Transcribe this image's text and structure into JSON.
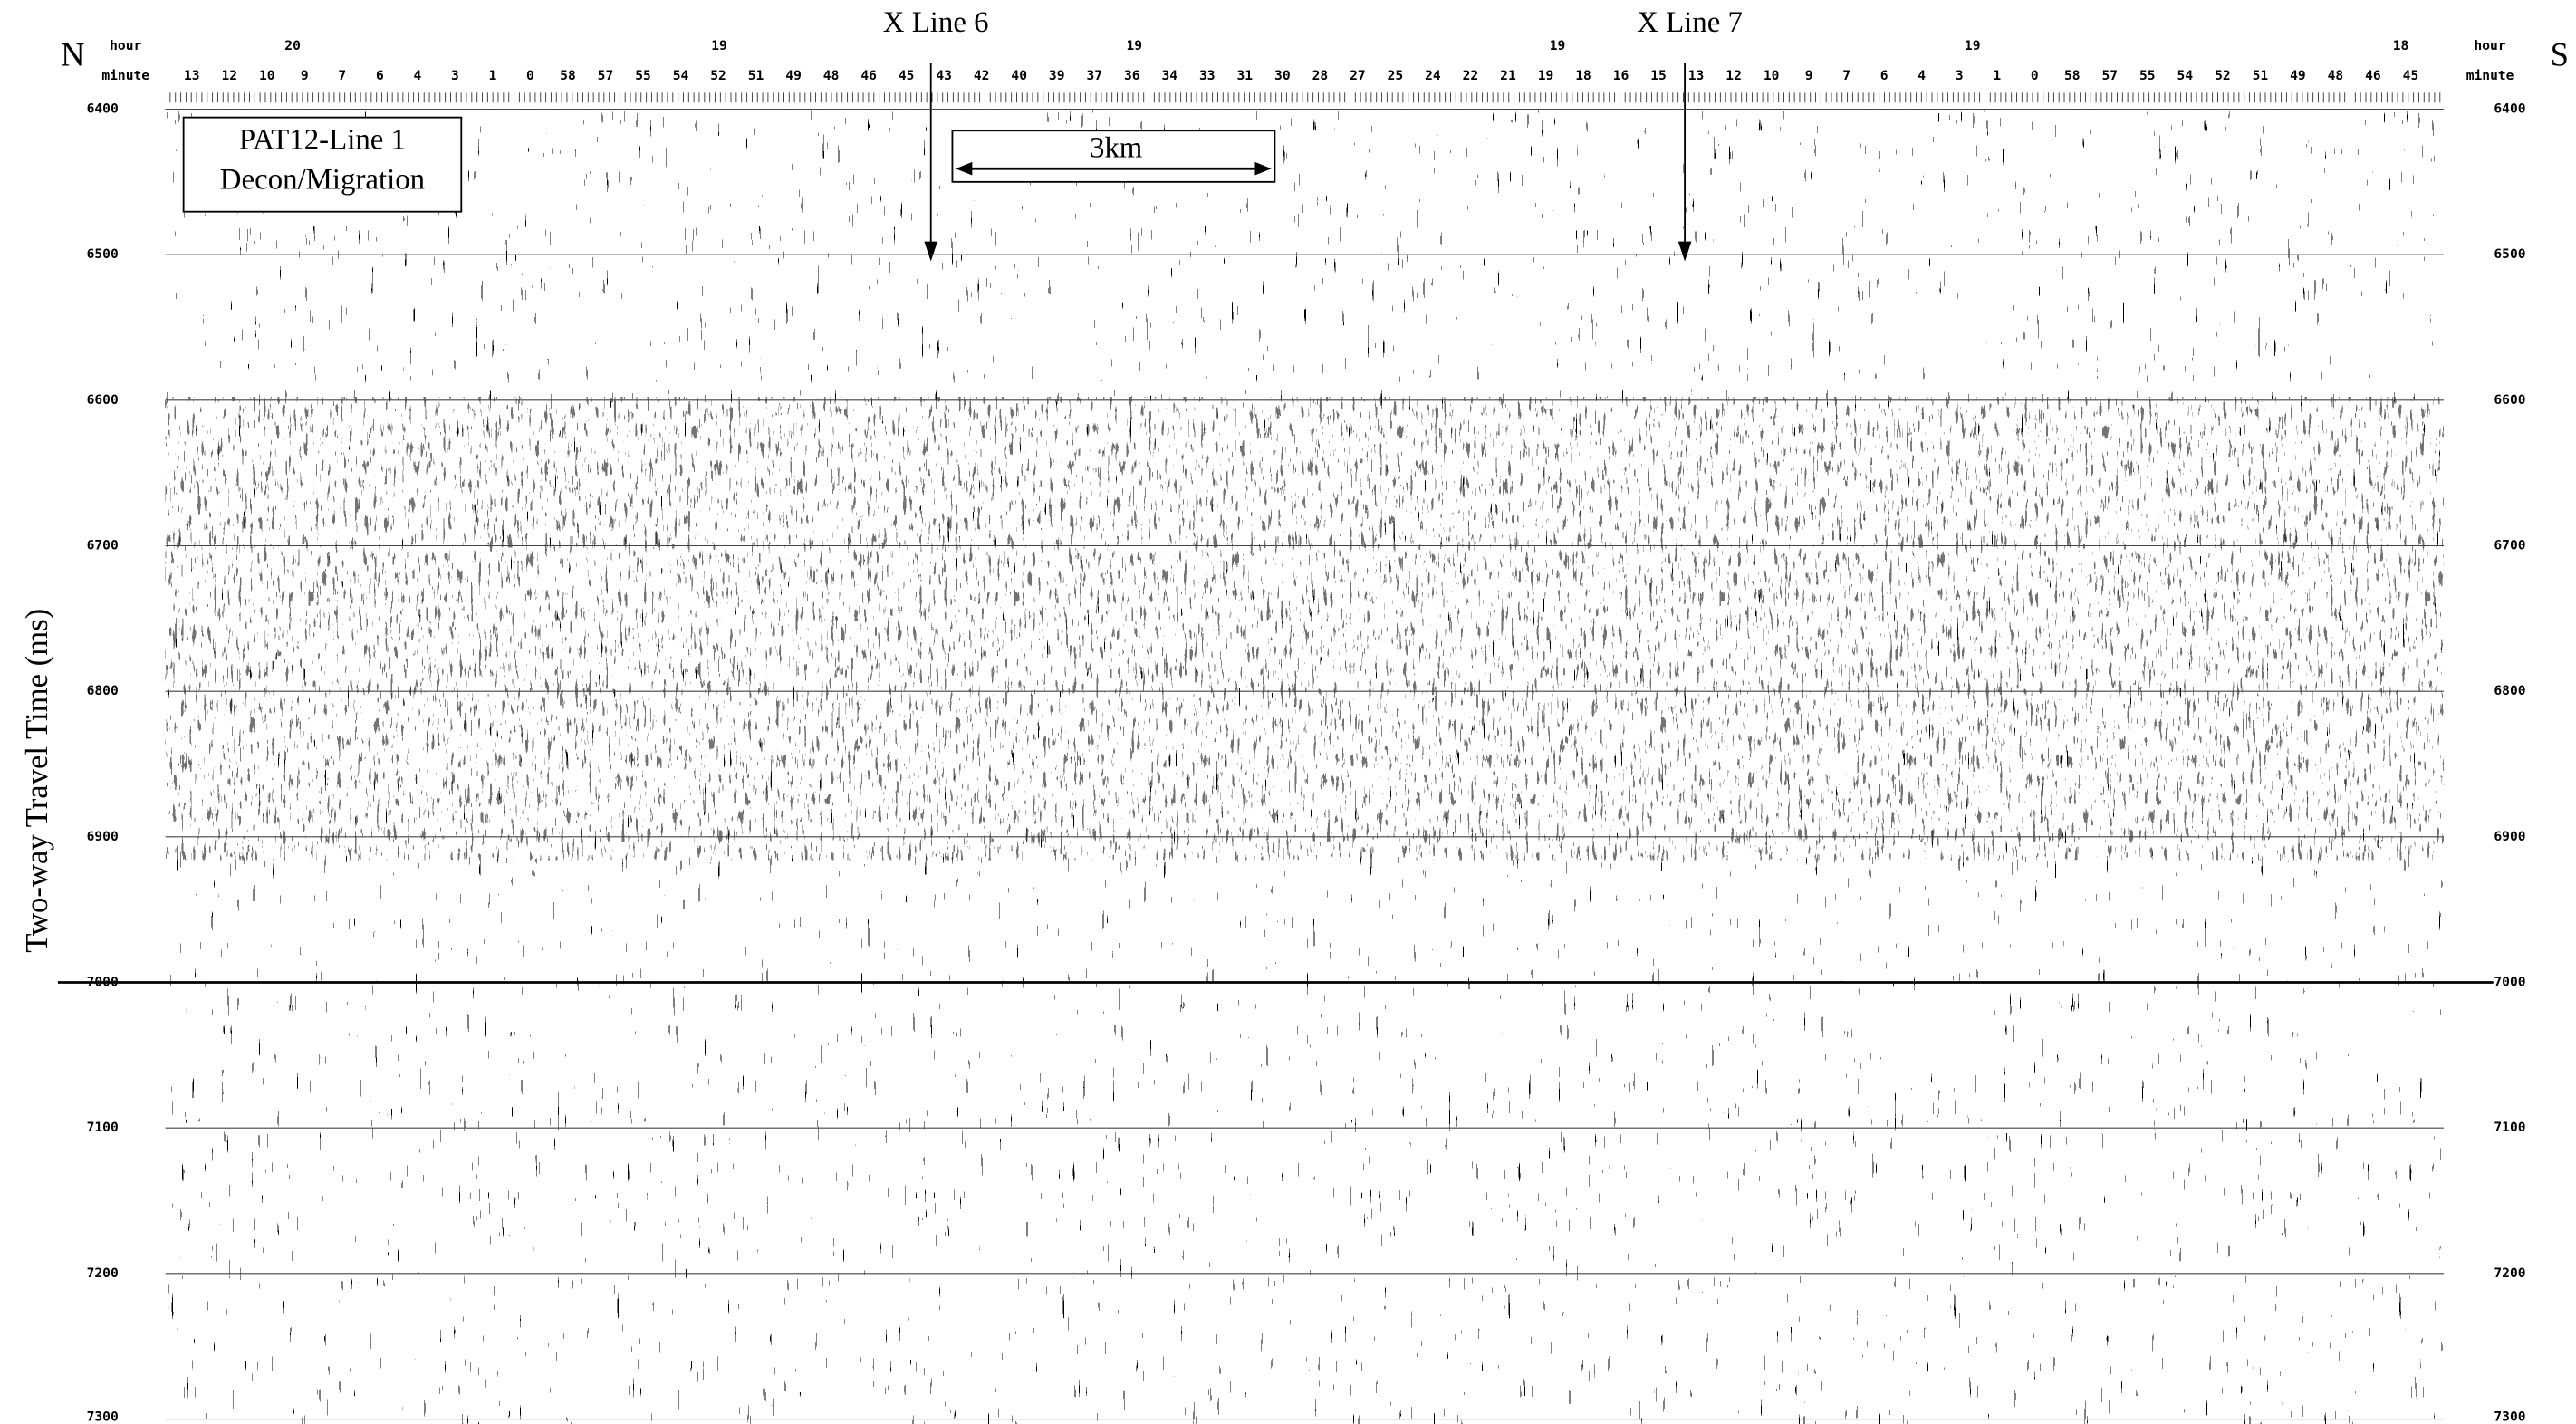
{
  "figure": {
    "panel_label": [
      "PAT12-Line 1",
      "Decon/Migration"
    ],
    "scale_bar": "3km",
    "left_end": "N",
    "right_end": "S",
    "crosslines": [
      "X Line 6",
      "X Line 7"
    ],
    "top_axis": {
      "hour_label": "hour",
      "minute_label": "minute",
      "hours": [
        "20",
        "19",
        "19",
        "19",
        "19",
        "18"
      ],
      "minutes": [
        "13",
        "12",
        "10",
        "9",
        "7",
        "6",
        "4",
        "3",
        "1",
        "0",
        "58",
        "57",
        "55",
        "54",
        "52",
        "51",
        "49",
        "48",
        "46",
        "45",
        "43",
        "42",
        "40",
        "39",
        "37",
        "36",
        "34",
        "33",
        "31",
        "30",
        "28",
        "27",
        "25",
        "24",
        "22",
        "21",
        "19",
        "18",
        "16",
        "15",
        "13",
        "12",
        "10",
        "9",
        "7",
        "6",
        "4",
        "3",
        "1",
        "0",
        "58",
        "57",
        "55",
        "54",
        "52",
        "51",
        "49",
        "48",
        "46",
        "45"
      ]
    },
    "y_axis": {
      "label": "Two-way Travel Time (ms)",
      "lim": [
        6400,
        7300
      ],
      "ticks": [
        6400,
        6500,
        6600,
        6700,
        6800,
        6900,
        7000,
        7100,
        7200,
        7300
      ]
    }
  }
}
